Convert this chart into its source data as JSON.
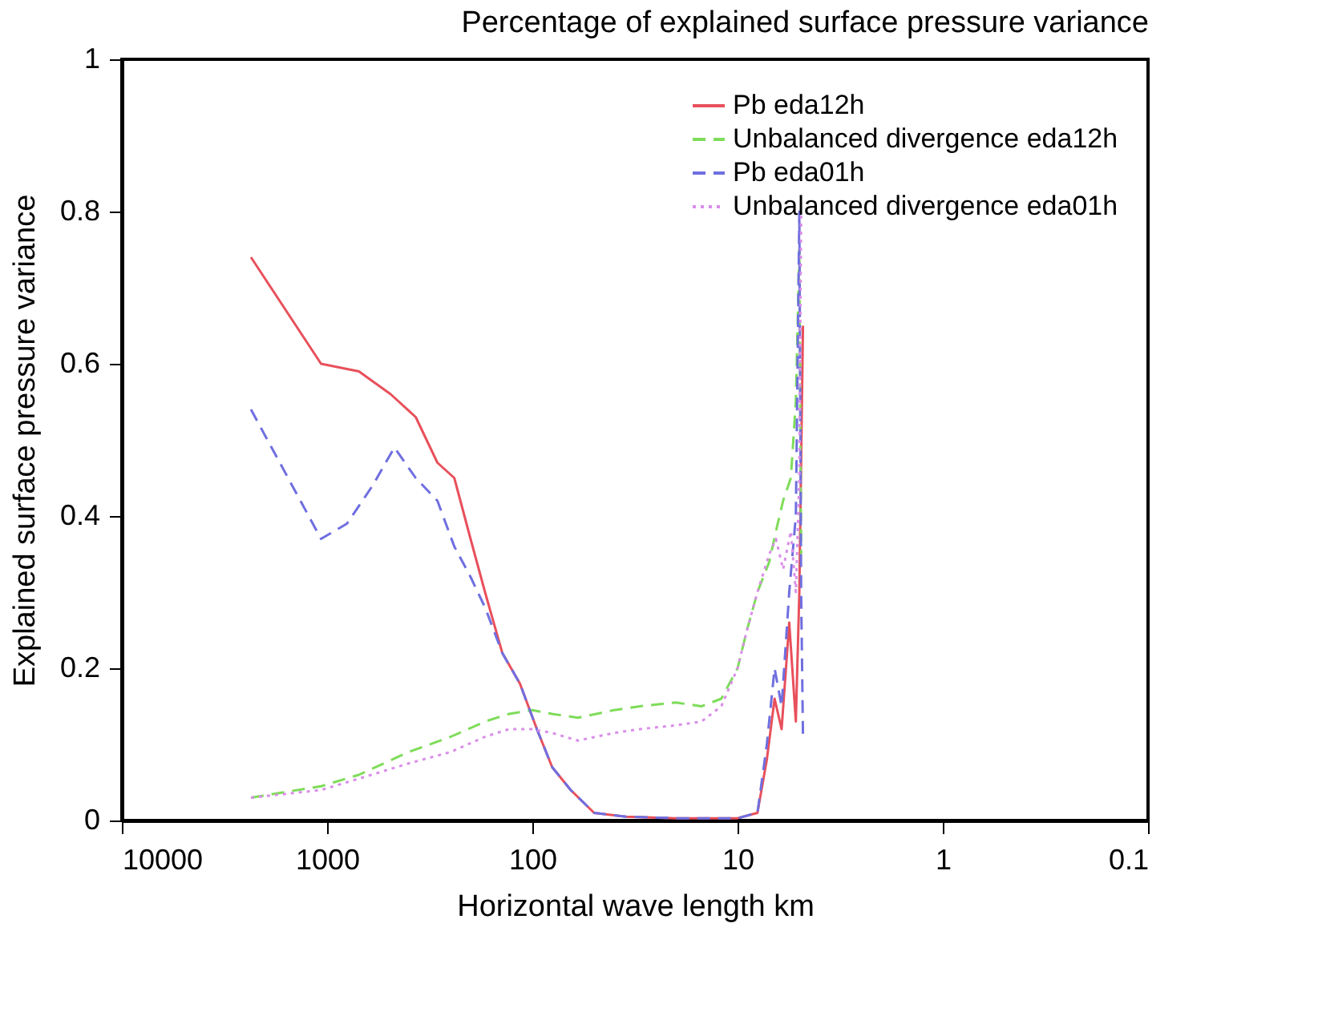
{
  "chart_data": {
    "type": "line",
    "title": "Percentage of explained surface pressure variance",
    "xlabel": "Horizontal wave length km",
    "ylabel": "Explained surface pressure variance",
    "log": "x",
    "xlim": [
      10000,
      0.1
    ],
    "xticks": [
      10000,
      1000,
      100,
      10,
      1,
      0.1
    ],
    "ylim": [
      0,
      1
    ],
    "yticks": [
      0,
      0.2,
      0.4,
      0.6,
      0.8,
      1
    ],
    "grid": false,
    "legend": "top right",
    "marker": "none",
    "series": [
      {
        "name": "Pb eda12h",
        "color": "#e8505b",
        "line_style": "solid",
        "x": [
          2350,
          1070,
          700,
          490,
          370,
          290,
          240,
          200,
          170,
          140,
          115,
          95,
          80,
          65,
          50,
          35,
          20,
          10,
          8,
          7.2,
          6.6,
          6.1,
          5.6,
          5.2,
          5.0,
          4.8
        ],
        "values": [
          0.74,
          0.6,
          0.59,
          0.56,
          0.53,
          0.47,
          0.45,
          0.37,
          0.3,
          0.22,
          0.18,
          0.12,
          0.07,
          0.04,
          0.01,
          0.005,
          0.003,
          0.003,
          0.01,
          0.08,
          0.16,
          0.12,
          0.26,
          0.13,
          0.3,
          0.65
        ]
      },
      {
        "name": "Unbalanced divergence eda12h",
        "color": "#7fdc5a",
        "line_style": "dashed",
        "x": [
          2350,
          1070,
          700,
          400,
          250,
          170,
          130,
          100,
          80,
          60,
          40,
          30,
          20,
          15,
          12,
          10,
          9,
          8,
          7,
          6.5,
          6,
          5.5,
          5.2,
          5.0,
          4.9
        ],
        "values": [
          0.03,
          0.045,
          0.06,
          0.09,
          0.11,
          0.13,
          0.14,
          0.145,
          0.14,
          0.135,
          0.145,
          0.15,
          0.155,
          0.15,
          0.16,
          0.2,
          0.25,
          0.3,
          0.34,
          0.38,
          0.42,
          0.45,
          0.55,
          0.75,
          0.35
        ]
      },
      {
        "name": "Pb eda01h",
        "color": "#6f6fe0",
        "line_style": "dashed",
        "x": [
          2350,
          1070,
          800,
          600,
          470,
          370,
          290,
          240,
          200,
          170,
          140,
          115,
          95,
          80,
          65,
          50,
          35,
          20,
          10,
          8,
          7.2,
          6.6,
          6.1,
          5.6,
          5.2,
          5.0,
          4.9,
          4.8
        ],
        "values": [
          0.54,
          0.37,
          0.39,
          0.44,
          0.49,
          0.45,
          0.42,
          0.36,
          0.32,
          0.28,
          0.22,
          0.18,
          0.12,
          0.07,
          0.04,
          0.01,
          0.005,
          0.003,
          0.003,
          0.01,
          0.1,
          0.2,
          0.15,
          0.3,
          0.4,
          0.8,
          0.3,
          0.11
        ]
      },
      {
        "name": "Unbalanced divergence eda01h",
        "color": "#d98fe8",
        "line_style": "dotted",
        "x": [
          2350,
          1070,
          700,
          400,
          250,
          170,
          130,
          100,
          80,
          60,
          40,
          30,
          20,
          15,
          12,
          10,
          9,
          8,
          7,
          6.5,
          6,
          5.5,
          5.2,
          5.0,
          4.9
        ],
        "values": [
          0.03,
          0.04,
          0.055,
          0.075,
          0.09,
          0.11,
          0.12,
          0.12,
          0.115,
          0.105,
          0.115,
          0.12,
          0.125,
          0.13,
          0.15,
          0.2,
          0.25,
          0.3,
          0.35,
          0.37,
          0.33,
          0.38,
          0.3,
          0.45,
          0.8
        ]
      }
    ]
  }
}
